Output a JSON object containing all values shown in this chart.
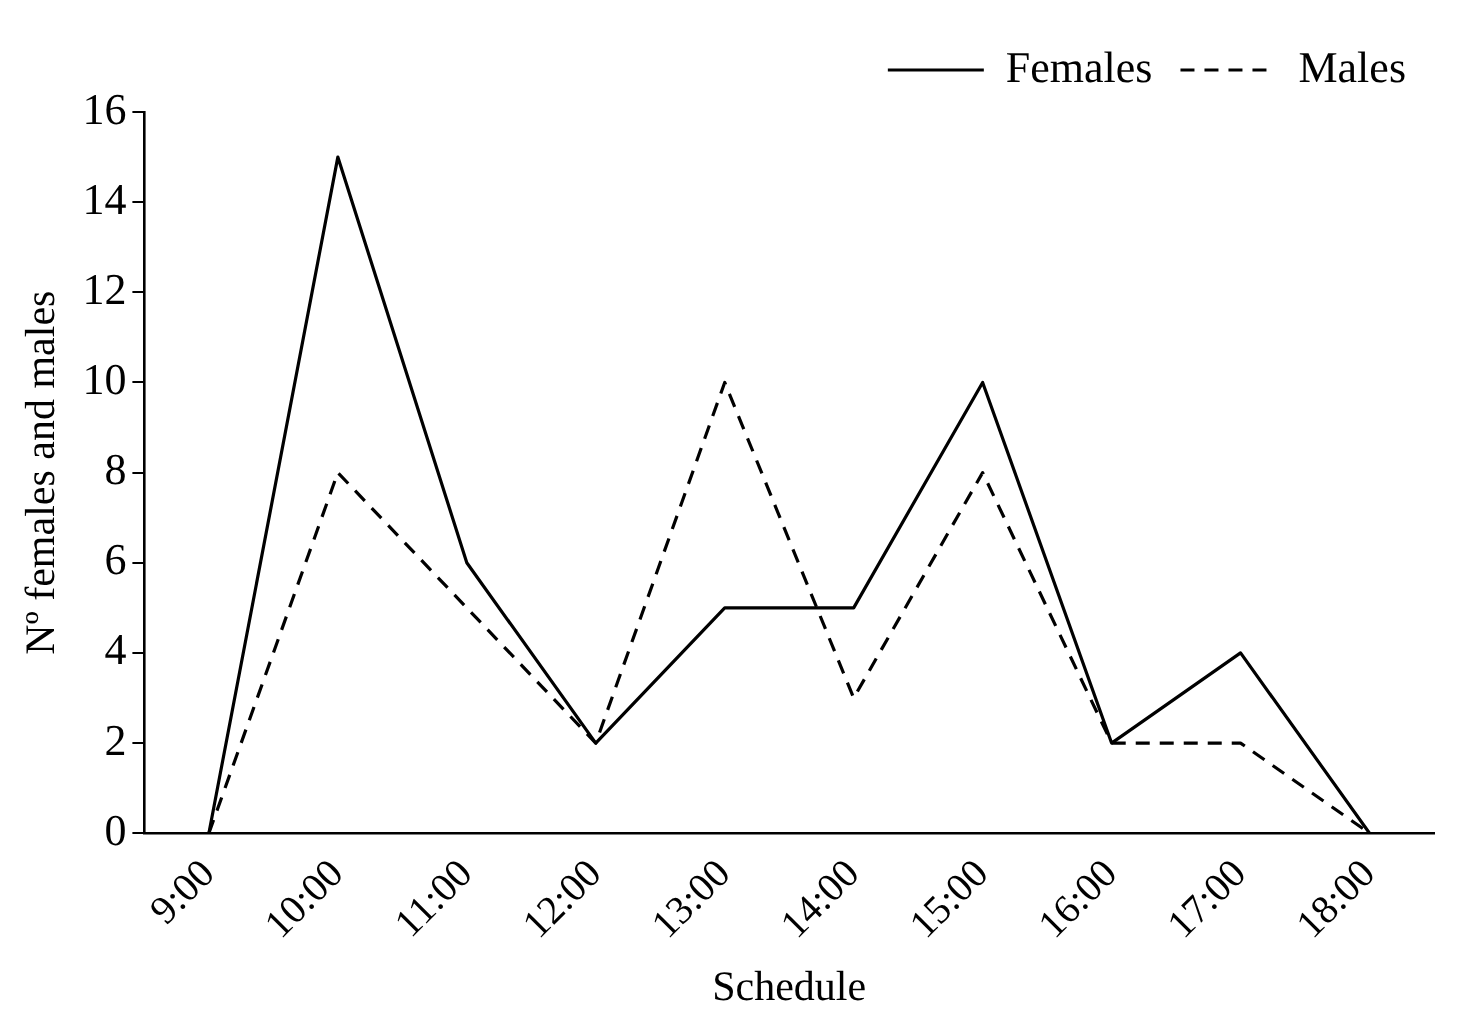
{
  "chart_data": {
    "type": "line",
    "xlabel": "Schedule",
    "ylabel": "Nº females and males",
    "categories": [
      "9:00",
      "10:00",
      "11:00",
      "12:00",
      "13:00",
      "14:00",
      "15:00",
      "16:00",
      "17:00",
      "18:00"
    ],
    "series": [
      {
        "name": "Females",
        "color": "#000000",
        "line_style": "solid",
        "values": [
          0,
          15,
          6,
          2,
          5,
          5,
          10,
          2,
          4,
          0
        ]
      },
      {
        "name": "Males",
        "color": "#000000",
        "line_style": "dashed",
        "values": [
          0,
          8,
          5,
          2,
          10,
          3,
          8,
          2,
          2,
          0
        ]
      }
    ],
    "ylim": [
      0,
      16
    ],
    "yticks": [
      0,
      2,
      4,
      6,
      8,
      10,
      12,
      14,
      16
    ],
    "grid": false,
    "legend": "top right",
    "marker": "none"
  }
}
